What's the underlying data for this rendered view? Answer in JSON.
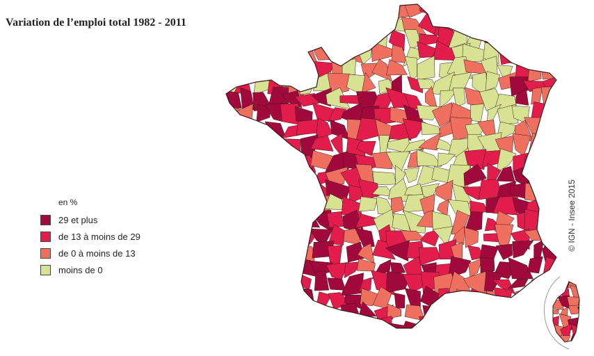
{
  "title": "Variation de l’emploi total 1982 - 2011",
  "legend": {
    "unit": "en %",
    "items": [
      {
        "label": "29 et plus",
        "color": "#a1093c"
      },
      {
        "label": "de 13 à moins de  29",
        "color": "#e21c4b"
      },
      {
        "label": "de 0 à moins de 13",
        "color": "#f07060"
      },
      {
        "label": "moins de 0",
        "color": "#d8e293"
      }
    ]
  },
  "credit": "© IGN - Insee 2015",
  "colors": {
    "border": "#3a1a1a",
    "frame": "#999999"
  }
}
